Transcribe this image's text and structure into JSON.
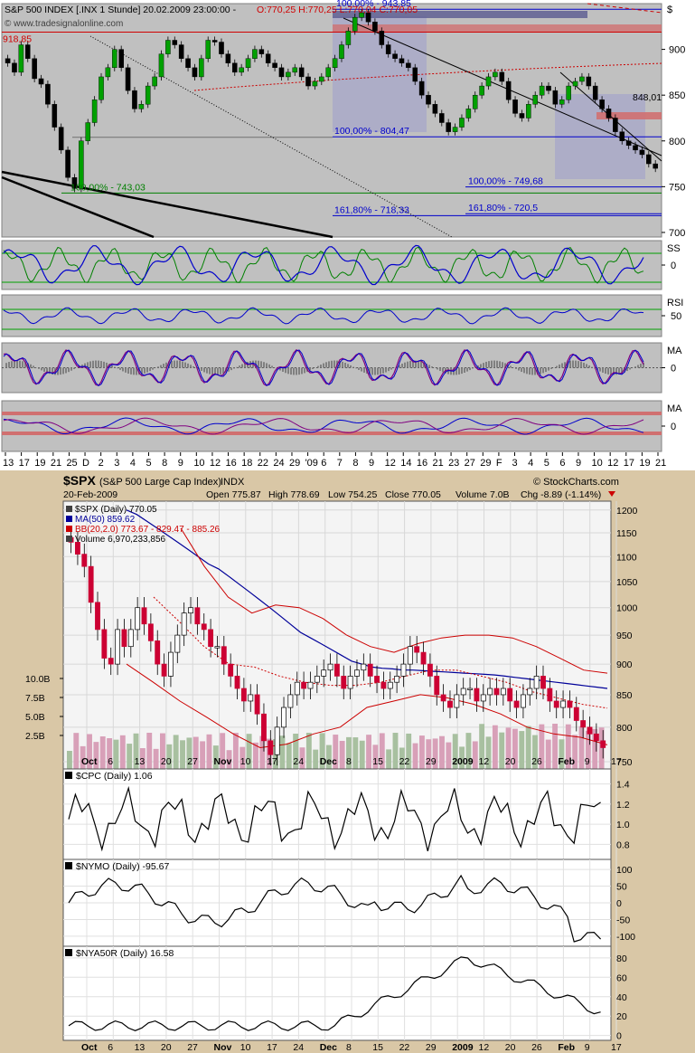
{
  "top_chart": {
    "header": "S&P 500 INDEX [.INX  1 Stunde] 20.02.2009 23:00:00 - O:770,25 H:770,25 L:770,04 C:770,05",
    "header_parts": {
      "title": "S&P 500 INDEX [.INX  1 Stunde] 20.02.2009 23:00:00 -",
      "ohlc": "O:770,25 H:770,25 L:770,04 C:770,05"
    },
    "currency": "$",
    "watermark": "© www.tradesignalonline.com",
    "y_ticks": [
      "900",
      "850",
      "800",
      "750",
      "700"
    ],
    "y_range": [
      695,
      950
    ],
    "levels": [
      {
        "label": "918,85",
        "value": 918.85,
        "color": "#d00000"
      },
      {
        "label": "100,00% - 943,85",
        "value": 943.85,
        "color": "#0000cc"
      },
      {
        "label": "100,00% - 804,47",
        "value": 804.47,
        "color": "#0000cc"
      },
      {
        "label": "161,80% - 718,33",
        "value": 718.33,
        "color": "#0000cc"
      },
      {
        "label": "100,00% - 749,68",
        "value": 749.68,
        "color": "#0000cc"
      },
      {
        "label": "161,80% - 720,5",
        "value": 720.5,
        "color": "#0000cc"
      },
      {
        "label": "100,00% - 743,03",
        "value": 743.03,
        "color": "#008000"
      },
      {
        "label": "848,01",
        "value": 848.01,
        "color": "#000000"
      }
    ],
    "x_ticks": [
      "13",
      "17",
      "19",
      "21",
      "25",
      "D",
      "2",
      "3",
      "4",
      "5",
      "8",
      "9",
      "10",
      "12",
      "16",
      "18",
      "22",
      "24",
      "29",
      "'09",
      "6",
      "7",
      "8",
      "9",
      "12",
      "14",
      "16",
      "21",
      "23",
      "27",
      "29",
      "F",
      "3",
      "4",
      "5",
      "6",
      "9",
      "10",
      "12",
      "17",
      "19",
      "21"
    ],
    "indicators": [
      {
        "label": "SS",
        "ticks": [
          "0"
        ]
      },
      {
        "label": "RSI",
        "ticks": [
          "50"
        ]
      },
      {
        "label": "MA",
        "ticks": [
          "0"
        ]
      },
      {
        "label": "MA",
        "ticks": [
          "0"
        ]
      }
    ]
  },
  "bottom_chart": {
    "symbol": "$SPX",
    "name": "(S&P 500 Large Cap Index)",
    "exchange": "INDX",
    "brand": "© StockCharts.com",
    "date": "20-Feb-2009",
    "open": "Open 775.87",
    "high": "High 778.69",
    "low": "Low 754.25",
    "close": "Close 770.05",
    "volume": "Volume 7.0B",
    "chg": "Chg -8.89 (-1.14%)",
    "legend": [
      {
        "text": "$SPX (Daily) 770.05",
        "color": "#000000"
      },
      {
        "text": "MA(50) 859.62",
        "color": "#000099"
      },
      {
        "text": "BB(20,2.0) 773.67 - 829.47 - 885.26",
        "color": "#cc0000"
      },
      {
        "text": "Volume 6,970,233,856",
        "color": "#000000"
      }
    ],
    "y_ticks": [
      "1200",
      "1150",
      "1100",
      "1050",
      "1000",
      "950",
      "900",
      "850",
      "800",
      "750"
    ],
    "vol_ticks": [
      "10.0B",
      "7.5B",
      "5.0B",
      "2.5B"
    ],
    "x_ticks": [
      "Oct",
      "6",
      "13",
      "20",
      "27",
      "Nov",
      "10",
      "17",
      "24",
      "Dec",
      "8",
      "15",
      "22",
      "29",
      "2009",
      "12",
      "20",
      "26",
      "Feb",
      "9",
      "17"
    ],
    "panels": [
      {
        "label": "$CPC (Daily) 1.06",
        "ticks": [
          "1.4",
          "1.2",
          "1.0",
          "0.8"
        ]
      },
      {
        "label": "$NYMO (Daily) -95.67",
        "ticks": [
          "100",
          "50",
          "0",
          "-50",
          "-100"
        ]
      },
      {
        "label": "$NYA50R (Daily) 16.58",
        "ticks": [
          "80",
          "60",
          "40",
          "20",
          "0"
        ]
      }
    ]
  },
  "chart_data": [
    {
      "type": "line",
      "title": "S&P 500 INDEX [.INX 1 Stunde]",
      "xlabel": "",
      "ylabel": "",
      "ylim": [
        695,
        950
      ],
      "series": [
        {
          "name": "",
          "values": [
            885,
            875,
            905,
            890,
            868,
            862,
            840,
            815,
            790,
            760,
            748,
            800,
            820,
            845,
            870,
            880,
            900,
            880,
            855,
            835,
            840,
            860,
            870,
            895,
            910,
            905,
            890,
            880,
            870,
            890,
            910,
            908,
            895,
            885,
            875,
            880,
            890,
            900,
            895,
            885,
            880,
            870,
            875,
            880,
            870,
            860,
            865,
            870,
            880,
            890,
            905,
            920,
            935,
            940,
            930,
            920,
            905,
            895,
            890,
            885,
            880,
            865,
            850,
            840,
            830,
            820,
            810,
            815,
            825,
            835,
            850,
            860,
            870,
            875,
            865,
            845,
            830,
            825,
            840,
            850,
            860,
            855,
            840,
            845,
            860,
            865,
            870,
            860,
            845,
            835,
            825,
            810,
            800,
            795,
            790,
            785,
            775,
            770
          ]
        }
      ]
    },
    {
      "type": "bar",
      "title": "$SPX (S&P 500 Large Cap Index) INDX",
      "xlabel": "",
      "ylabel": "",
      "ylim": [
        740,
        1220
      ],
      "series": [
        {
          "name": "$SPX (Daily) 770.05",
          "values": [
            1130,
            1105,
            1080,
            1010,
            960,
            910,
            900,
            960,
            930,
            960,
            1000,
            970,
            940,
            900,
            880,
            920,
            950,
            990,
            1000,
            970,
            960,
            930,
            930,
            900,
            880,
            860,
            840,
            850,
            820,
            780,
            760,
            800,
            830,
            850,
            870,
            860,
            870,
            880,
            890,
            900,
            880,
            860,
            880,
            890,
            900,
            880,
            870,
            860,
            870,
            880,
            900,
            930,
            920,
            900,
            880,
            850,
            840,
            830,
            850,
            860,
            860,
            840,
            850,
            860,
            850,
            860,
            840,
            830,
            850,
            860,
            880,
            860,
            840,
            830,
            840,
            830,
            810,
            800,
            790,
            780,
            770
          ]
        },
        {
          "name": "MA(50) 859.62",
          "values": [
            1200,
            1190,
            1175,
            1160,
            1145,
            1130,
            1115,
            1100,
            1085,
            1075,
            1060,
            1045,
            1030,
            1015,
            1000,
            985,
            970,
            955,
            945,
            935,
            925,
            915,
            905,
            900,
            895,
            893,
            892,
            890,
            890,
            889,
            888,
            887,
            886,
            885,
            884,
            883,
            882,
            880,
            878,
            876,
            874,
            872,
            870,
            868,
            866,
            864,
            862,
            860
          ]
        },
        {
          "name": "BB(20,2.0) 773.67 - 829.47 - 885.26",
          "values": [
            885,
            880,
            875,
            870,
            860,
            850,
            840,
            830,
            820,
            810,
            800,
            790,
            780,
            774
          ]
        }
      ]
    }
  ]
}
